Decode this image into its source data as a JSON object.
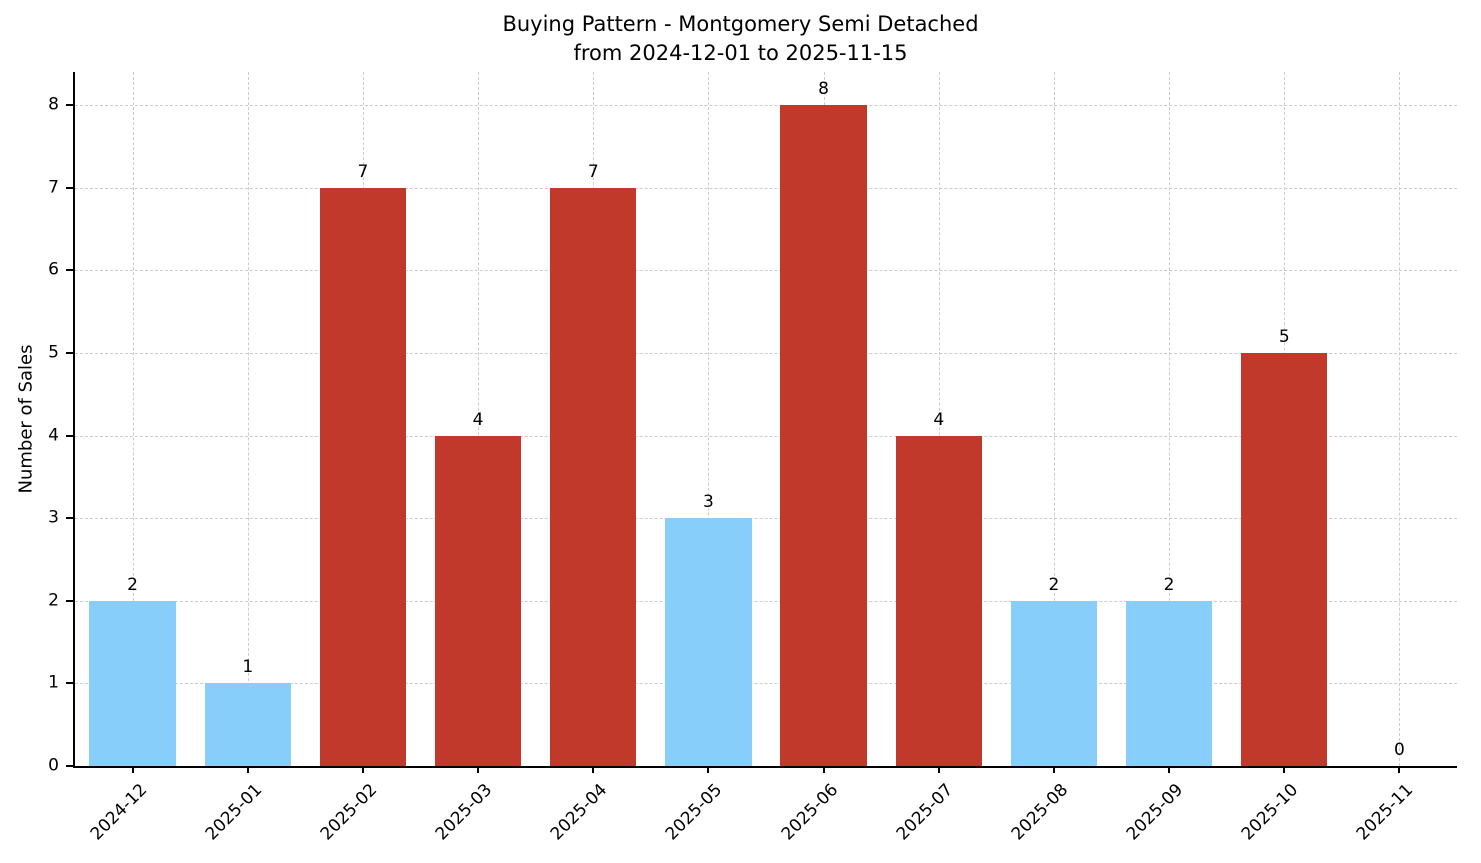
{
  "title": {
    "line1": "Buying Pattern - Montgomery Semi Detached",
    "line2": "from 2024-12-01 to 2025-11-15"
  },
  "chart_data": {
    "type": "bar",
    "title": "Buying Pattern - Montgomery Semi Detached from 2024-12-01 to 2025-11-15",
    "xlabel": "",
    "ylabel": "Number of Sales",
    "categories": [
      "2024-12",
      "2025-01",
      "2025-02",
      "2025-03",
      "2025-04",
      "2025-05",
      "2025-06",
      "2025-07",
      "2025-08",
      "2025-09",
      "2025-10",
      "2025-11"
    ],
    "values": [
      2,
      1,
      7,
      4,
      7,
      3,
      8,
      4,
      2,
      2,
      5,
      0
    ],
    "value_labels": [
      "2",
      "1",
      "7",
      "4",
      "7",
      "3",
      "8",
      "4",
      "2",
      "2",
      "5",
      "0"
    ],
    "bar_colors": [
      "#87CEFA",
      "#87CEFA",
      "#c0392b",
      "#c0392b",
      "#c0392b",
      "#87CEFA",
      "#c0392b",
      "#c0392b",
      "#87CEFA",
      "#87CEFA",
      "#c0392b",
      "#c0392b"
    ],
    "ylim": [
      0,
      8.4
    ],
    "yticks": [
      0,
      1,
      2,
      3,
      4,
      5,
      6,
      7,
      8
    ],
    "grid": true,
    "grid_style": "dashed",
    "grid_color": "#cccccc",
    "legend": "none",
    "colors": {
      "highlight_red": "#c0392b",
      "normal_blue": "#87CEFA",
      "axis": "#000000"
    }
  }
}
